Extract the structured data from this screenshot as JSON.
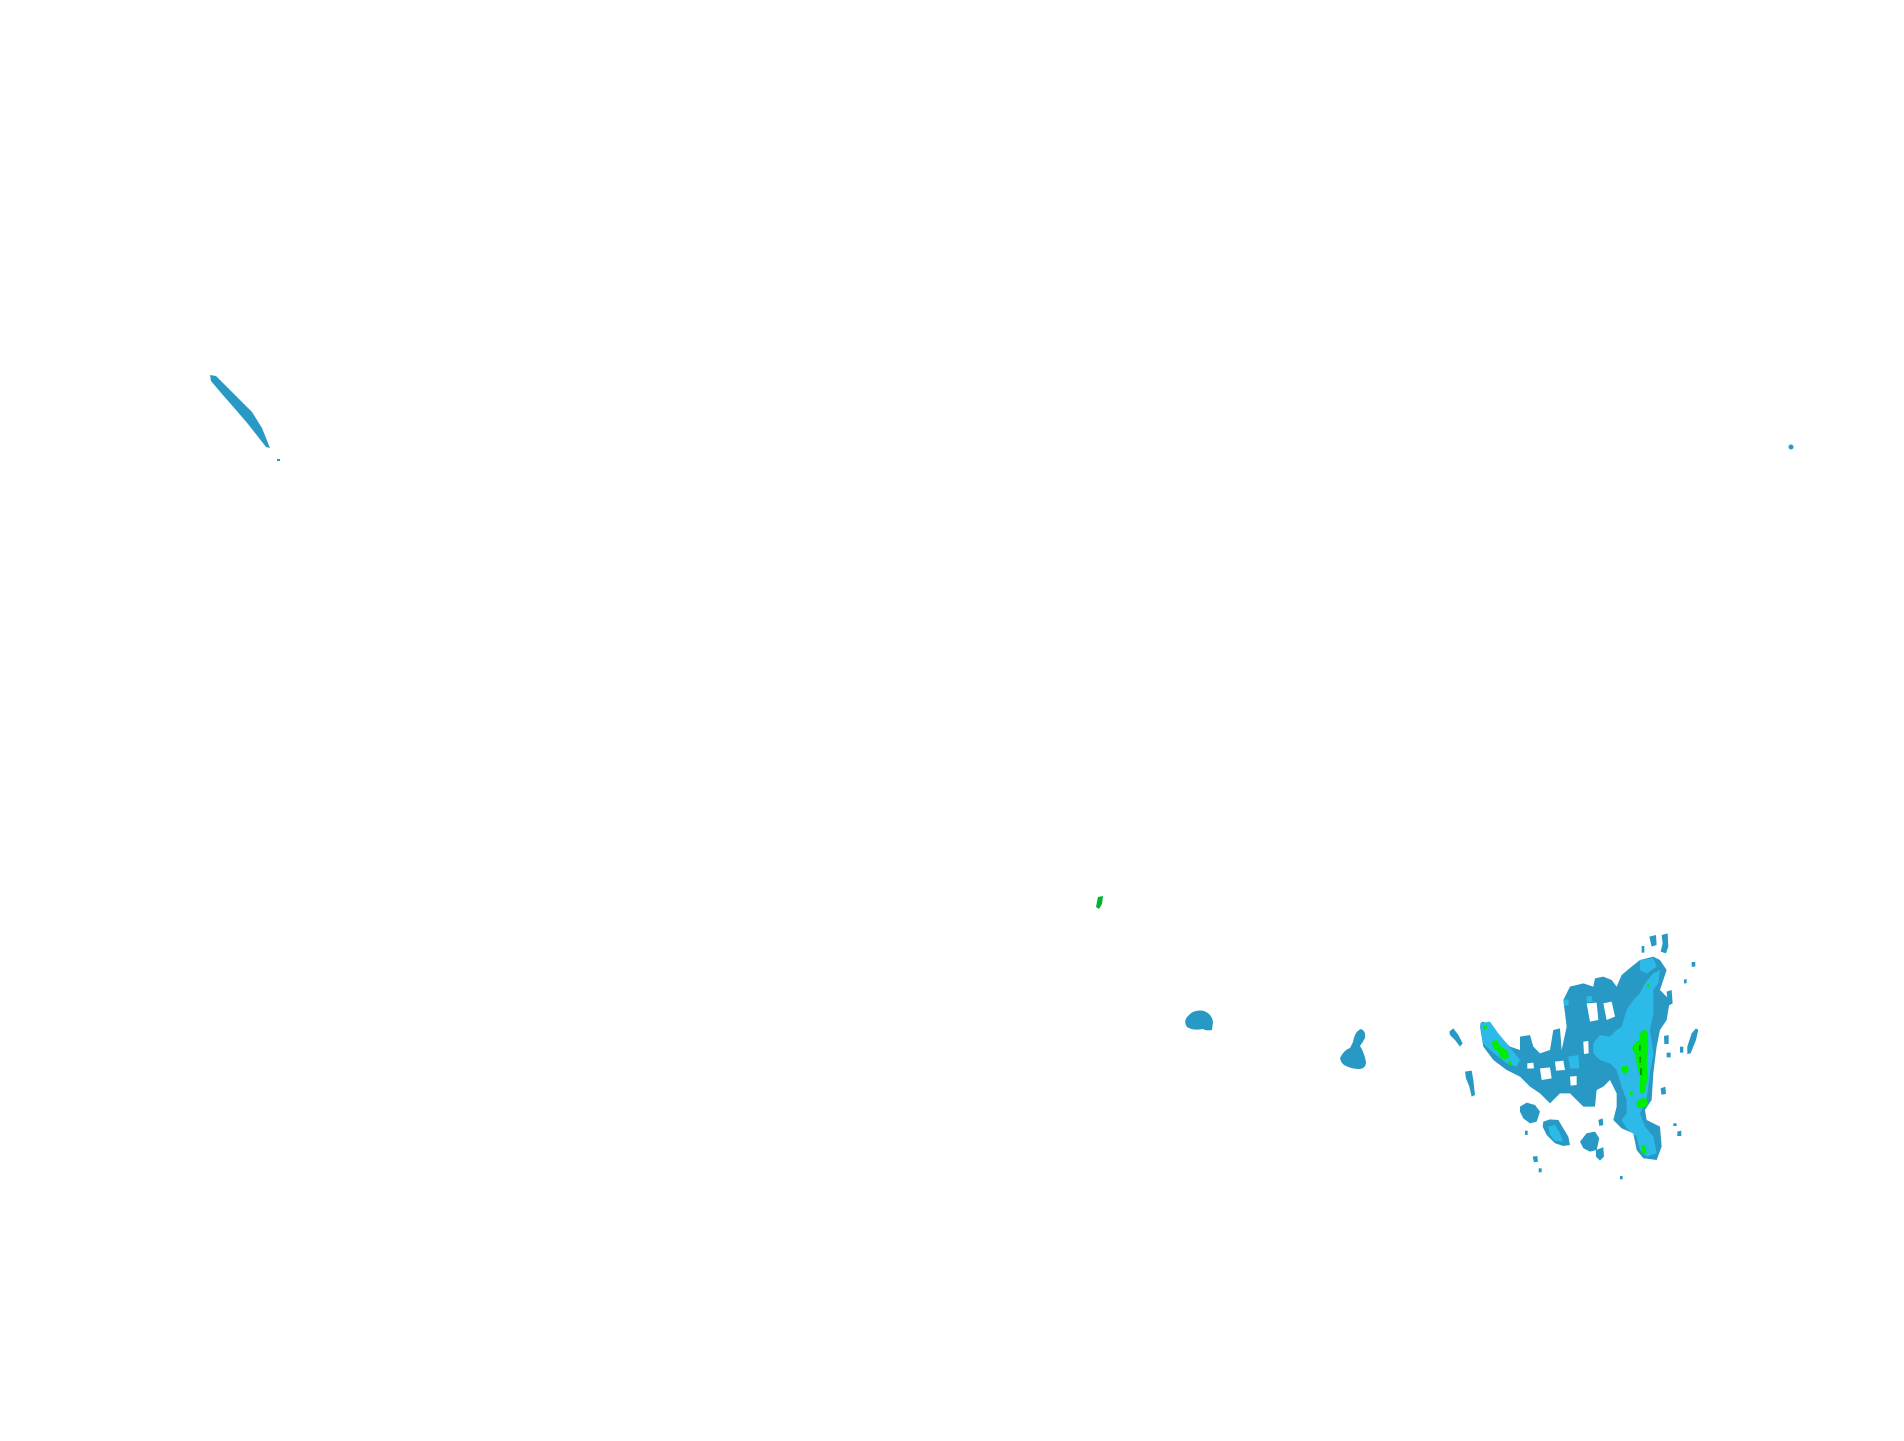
{
  "map": {
    "type": "radar-reflectivity-overlay",
    "background": "#ffffff",
    "colors": {
      "level_1": "#2899c4",
      "level_2": "#2cbbe8",
      "level_3": "#00ee00",
      "level_4": "#008f00"
    }
  }
}
